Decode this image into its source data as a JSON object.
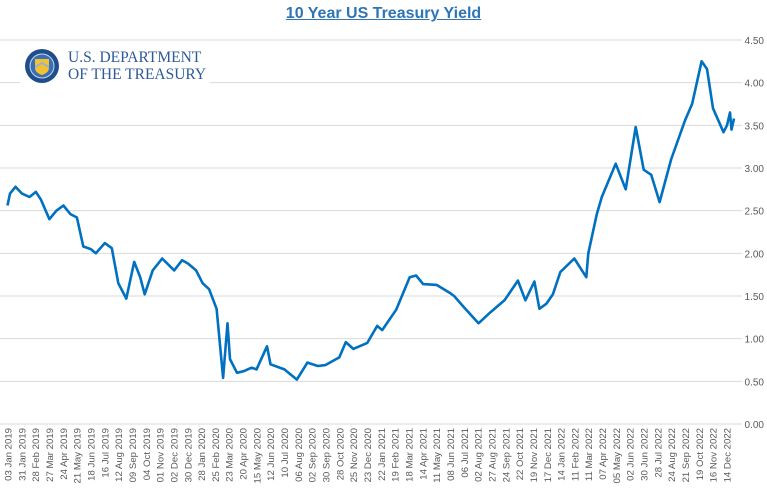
{
  "chart_data": {
    "type": "line",
    "title": "10 Year US Treasury Yield",
    "xlabel": "",
    "ylabel": "",
    "ylim": [
      0,
      4.5
    ],
    "yticks": [
      "0.00",
      "0.50",
      "1.00",
      "1.50",
      "2.00",
      "2.50",
      "3.00",
      "3.50",
      "4.00",
      "4.50"
    ],
    "grid": true,
    "y_axis_side": "right",
    "line_color": "#0070c0",
    "xtick_labels": [
      "03 Jan 2019",
      "31 Jan 2019",
      "28 Feb 2019",
      "27 Mar 2019",
      "24 Apr 2019",
      "21 May 2019",
      "18 Jun 2019",
      "16 Jul 2019",
      "12 Aug 2019",
      "09 Sep 2019",
      "04 Oct 2019",
      "01 Nov 2019",
      "02 Dec 2019",
      "30 Dec 2019",
      "28 Jan 2020",
      "25 Feb 2020",
      "23 Mar 2020",
      "20 Apr 2020",
      "15 May 2020",
      "12 Jun 2020",
      "10 Jul 2020",
      "06 Aug 2020",
      "02 Sep 2020",
      "30 Sep 2020",
      "28 Oct 2020",
      "25 Nov 2020",
      "23 Dec 2020",
      "22 Jan 2021",
      "19 Feb 2021",
      "18 Mar 2021",
      "14 Apr 2021",
      "11 May 2021",
      "08 Jun 2021",
      "06 Jul 2021",
      "02 Aug 2021",
      "27 Aug 2021",
      "24 Sep 2021",
      "22 Oct 2021",
      "19 Nov 2021",
      "17 Dec 2021",
      "14 Jan 2022",
      "11 Feb 2022",
      "11 Mar 2022",
      "07 Apr 2022",
      "05 May 2022",
      "02 Jun 2022",
      "30 Jun 2022",
      "28 Jul 2022",
      "24 Aug 2022",
      "21 Sep 2022",
      "19 Oct 2022",
      "16 Nov 2022",
      "14 Dec 2022"
    ],
    "series": [
      {
        "points": [
          [
            "2019-01-02",
            2.56
          ],
          [
            "2019-01-07",
            2.7
          ],
          [
            "2019-01-18",
            2.78
          ],
          [
            "2019-01-31",
            2.7
          ],
          [
            "2019-02-15",
            2.66
          ],
          [
            "2019-02-28",
            2.72
          ],
          [
            "2019-03-10",
            2.63
          ],
          [
            "2019-03-27",
            2.4
          ],
          [
            "2019-04-10",
            2.5
          ],
          [
            "2019-04-24",
            2.56
          ],
          [
            "2019-05-08",
            2.46
          ],
          [
            "2019-05-21",
            2.42
          ],
          [
            "2019-06-03",
            2.08
          ],
          [
            "2019-06-18",
            2.05
          ],
          [
            "2019-06-28",
            2.0
          ],
          [
            "2019-07-16",
            2.12
          ],
          [
            "2019-07-30",
            2.06
          ],
          [
            "2019-08-12",
            1.65
          ],
          [
            "2019-08-28",
            1.47
          ],
          [
            "2019-09-13",
            1.9
          ],
          [
            "2019-09-25",
            1.72
          ],
          [
            "2019-10-04",
            1.52
          ],
          [
            "2019-10-20",
            1.8
          ],
          [
            "2019-11-08",
            1.94
          ],
          [
            "2019-12-02",
            1.8
          ],
          [
            "2019-12-18",
            1.92
          ],
          [
            "2019-12-30",
            1.88
          ],
          [
            "2020-01-15",
            1.8
          ],
          [
            "2020-01-28",
            1.65
          ],
          [
            "2020-02-10",
            1.58
          ],
          [
            "2020-02-25",
            1.35
          ],
          [
            "2020-03-09",
            0.54
          ],
          [
            "2020-03-18",
            1.18
          ],
          [
            "2020-03-23",
            0.76
          ],
          [
            "2020-04-06",
            0.6
          ],
          [
            "2020-04-20",
            0.62
          ],
          [
            "2020-05-05",
            0.66
          ],
          [
            "2020-05-15",
            0.64
          ],
          [
            "2020-06-05",
            0.91
          ],
          [
            "2020-06-12",
            0.7
          ],
          [
            "2020-07-10",
            0.64
          ],
          [
            "2020-08-04",
            0.52
          ],
          [
            "2020-08-25",
            0.72
          ],
          [
            "2020-09-15",
            0.68
          ],
          [
            "2020-09-30",
            0.69
          ],
          [
            "2020-10-28",
            0.78
          ],
          [
            "2020-11-10",
            0.96
          ],
          [
            "2020-11-25",
            0.88
          ],
          [
            "2020-12-23",
            0.95
          ],
          [
            "2021-01-12",
            1.15
          ],
          [
            "2021-01-22",
            1.1
          ],
          [
            "2021-02-19",
            1.34
          ],
          [
            "2021-03-18",
            1.72
          ],
          [
            "2021-03-31",
            1.74
          ],
          [
            "2021-04-14",
            1.64
          ],
          [
            "2021-05-11",
            1.63
          ],
          [
            "2021-06-08",
            1.53
          ],
          [
            "2021-06-15",
            1.5
          ],
          [
            "2021-07-06",
            1.36
          ],
          [
            "2021-08-03",
            1.18
          ],
          [
            "2021-08-27",
            1.31
          ],
          [
            "2021-09-24",
            1.45
          ],
          [
            "2021-10-21",
            1.68
          ],
          [
            "2021-11-05",
            1.45
          ],
          [
            "2021-11-23",
            1.67
          ],
          [
            "2021-12-03",
            1.35
          ],
          [
            "2021-12-17",
            1.41
          ],
          [
            "2021-12-30",
            1.52
          ],
          [
            "2022-01-14",
            1.78
          ],
          [
            "2022-02-11",
            1.94
          ],
          [
            "2022-03-07",
            1.72
          ],
          [
            "2022-03-11",
            2.0
          ],
          [
            "2022-03-28",
            2.46
          ],
          [
            "2022-04-07",
            2.66
          ],
          [
            "2022-05-05",
            3.05
          ],
          [
            "2022-05-25",
            2.75
          ],
          [
            "2022-06-14",
            3.48
          ],
          [
            "2022-06-30",
            2.98
          ],
          [
            "2022-07-15",
            2.92
          ],
          [
            "2022-08-01",
            2.6
          ],
          [
            "2022-08-24",
            3.1
          ],
          [
            "2022-09-21",
            3.56
          ],
          [
            "2022-10-05",
            3.75
          ],
          [
            "2022-10-24",
            4.25
          ],
          [
            "2022-11-04",
            4.16
          ],
          [
            "2022-11-16",
            3.7
          ],
          [
            "2022-12-07",
            3.42
          ],
          [
            "2022-12-14",
            3.5
          ],
          [
            "2022-12-20",
            3.65
          ],
          [
            "2022-12-23",
            3.45
          ],
          [
            "2022-12-28",
            3.58
          ]
        ]
      }
    ]
  },
  "logo": {
    "line1": "U.S. DEPARTMENT",
    "line2": "OF THE TREASURY"
  }
}
